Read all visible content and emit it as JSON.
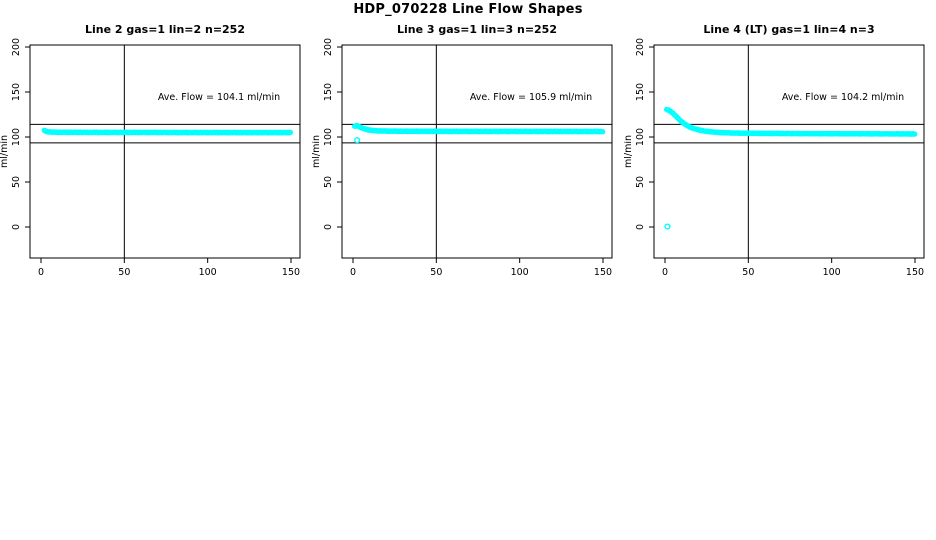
{
  "figure": {
    "title": "HDP_070228  Line Flow Shapes"
  },
  "chart_data": {
    "type": "scatter",
    "title": "HDP_070228  Line Flow Shapes",
    "layout": "1x3 panels, white background, black box around each plot, grid off",
    "marker": "open-circle",
    "marker_color": "#00FFFF",
    "line_color": "#000000",
    "jitter_pattern": [
      0.35,
      -0.25,
      0.5,
      -0.45,
      0.15,
      -0.5,
      0.4,
      -0.1,
      -0.35,
      0.25
    ],
    "panels": [
      {
        "title": "Line 2 gas=1 lin=2 n=252",
        "annotation": "Ave. Flow =  104.1  ml/min",
        "ave_flow": 104.1,
        "n": 252,
        "ylabel": "ml/min",
        "x_ticks": [
          0,
          50,
          100,
          150
        ],
        "y_ticks": [
          0,
          50,
          100,
          150,
          200
        ],
        "xlim": [
          -6.6,
          155.4
        ],
        "ylim": [
          -34,
          202
        ],
        "vline_x": 50,
        "hlines": [
          114,
          93.5
        ],
        "x_start": 2,
        "x_end": 150,
        "marker_step": 0.6,
        "jitter_amp": 0.6,
        "trend": [
          [
            2,
            107.2
          ],
          [
            3,
            106.4
          ],
          [
            4,
            105.9
          ],
          [
            6,
            105.5
          ],
          [
            10,
            105.3
          ],
          [
            20,
            105.2
          ],
          [
            40,
            105.1
          ],
          [
            60,
            105.1
          ],
          [
            80,
            105.0
          ],
          [
            100,
            105.0
          ],
          [
            120,
            104.9
          ],
          [
            150,
            104.9
          ]
        ],
        "outliers": []
      },
      {
        "title": "Line 3 gas=1 lin=3 n=252",
        "annotation": "Ave. Flow =  105.9  ml/min",
        "ave_flow": 105.9,
        "n": 252,
        "ylabel": "ml/min",
        "x_ticks": [
          0,
          50,
          100,
          150
        ],
        "y_ticks": [
          0,
          50,
          100,
          150,
          200
        ],
        "xlim": [
          -6.6,
          155.4
        ],
        "ylim": [
          -34,
          202
        ],
        "vline_x": 50,
        "hlines": [
          114,
          93.5
        ],
        "x_start": 1,
        "x_end": 150,
        "marker_step": 0.6,
        "jitter_amp": 0.6,
        "trend": [
          [
            1,
            111.8
          ],
          [
            2,
            112.6
          ],
          [
            3,
            112.2
          ],
          [
            4,
            111.3
          ],
          [
            5,
            110.4
          ],
          [
            6,
            109.6
          ],
          [
            7,
            109.0
          ],
          [
            8,
            108.4
          ],
          [
            10,
            107.7
          ],
          [
            12,
            107.2
          ],
          [
            15,
            106.8
          ],
          [
            20,
            106.6
          ],
          [
            30,
            106.4
          ],
          [
            50,
            106.3
          ],
          [
            80,
            106.2
          ],
          [
            110,
            106.2
          ],
          [
            150,
            106.1
          ]
        ],
        "outliers": [
          [
            2.5,
            96.5
          ]
        ]
      },
      {
        "title": "Line 4 (LT) gas=1 lin=4 n=3",
        "annotation": "Ave. Flow =  104.2  ml/min",
        "ave_flow": 104.2,
        "n": 3,
        "ylabel": "ml/min",
        "x_ticks": [
          0,
          50,
          100,
          150
        ],
        "y_ticks": [
          0,
          50,
          100,
          150,
          200
        ],
        "xlim": [
          -6.6,
          155.4
        ],
        "ylim": [
          -34,
          202
        ],
        "vline_x": 50,
        "hlines": [
          114,
          93.5
        ],
        "x_start": 1,
        "x_end": 150,
        "marker_step": 0.6,
        "jitter_amp": 0.5,
        "trend": [
          [
            1,
            130.5
          ],
          [
            2,
            130.0
          ],
          [
            3,
            129.0
          ],
          [
            4,
            127.6
          ],
          [
            5,
            126.0
          ],
          [
            6,
            124.2
          ],
          [
            7,
            122.3
          ],
          [
            8,
            120.4
          ],
          [
            9,
            118.6
          ],
          [
            10,
            117.0
          ],
          [
            11,
            115.5
          ],
          [
            12,
            114.2
          ],
          [
            13,
            113.0
          ],
          [
            14,
            112.0
          ],
          [
            15,
            111.1
          ],
          [
            16,
            110.3
          ],
          [
            17,
            109.6
          ],
          [
            18,
            109.0
          ],
          [
            20,
            108.0
          ],
          [
            22,
            107.2
          ],
          [
            24,
            106.6
          ],
          [
            26,
            106.1
          ],
          [
            28,
            105.7
          ],
          [
            30,
            105.4
          ],
          [
            35,
            104.8
          ],
          [
            40,
            104.5
          ],
          [
            50,
            104.2
          ],
          [
            60,
            104.0
          ],
          [
            80,
            103.8
          ],
          [
            110,
            103.6
          ],
          [
            150,
            103.4
          ]
        ],
        "outliers": [
          [
            1.5,
            0.5
          ]
        ]
      }
    ]
  }
}
